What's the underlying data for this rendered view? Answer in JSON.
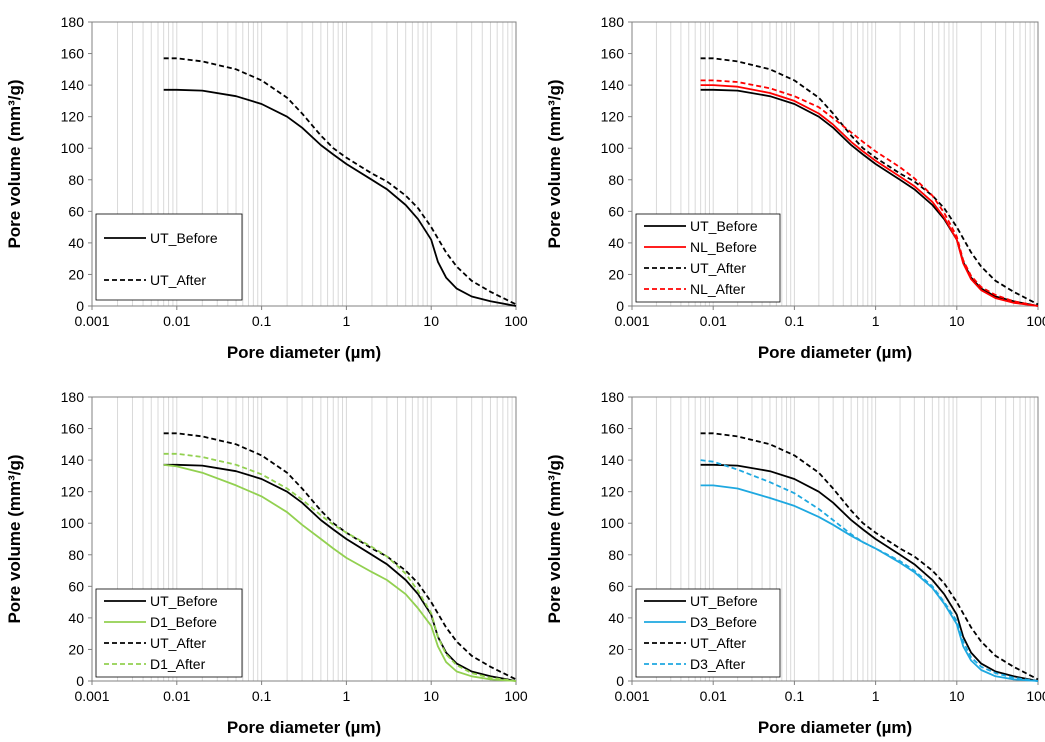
{
  "colors": {
    "ut_before": "#000000",
    "ut_after": "#000000",
    "nl": "#ff0000",
    "d1": "#92d050",
    "d3": "#1ea8e0",
    "grid": "#d9d9d9",
    "frame": "#808080"
  },
  "chart_data": [
    {
      "type": "line",
      "xlabel": "Pore diameter (µm)",
      "ylabel": "Pore volume (mm³/g)",
      "xscale": "log",
      "xlim": [
        0.001,
        100
      ],
      "ylim": [
        0,
        180
      ],
      "xticks": [
        "0.001",
        "0.01",
        "0.1",
        "1",
        "10",
        "100"
      ],
      "yticks": [
        "0",
        "20",
        "40",
        "60",
        "80",
        "100",
        "120",
        "140",
        "160",
        "180"
      ],
      "grid": "vertical minor",
      "legend_position": "bottom-left",
      "series": [
        {
          "name": "UT_Before",
          "color": "#000000",
          "dash": "solid",
          "x": [
            0.007,
            0.01,
            0.02,
            0.05,
            0.1,
            0.2,
            0.3,
            0.5,
            0.7,
            1,
            2,
            3,
            5,
            7,
            10,
            12,
            15,
            20,
            30,
            50,
            100
          ],
          "y": [
            137,
            137,
            136.5,
            133,
            128,
            120,
            113,
            102,
            96,
            90,
            80,
            74,
            64,
            55,
            42,
            28,
            18,
            11,
            6,
            3,
            0
          ]
        },
        {
          "name": "UT_After",
          "color": "#000000",
          "dash": "dashed",
          "x": [
            0.007,
            0.01,
            0.02,
            0.05,
            0.1,
            0.2,
            0.3,
            0.5,
            0.7,
            1,
            2,
            3,
            5,
            7,
            10,
            15,
            20,
            30,
            50,
            100
          ],
          "y": [
            157,
            157,
            155,
            150,
            143,
            132,
            122,
            108,
            100,
            94,
            84,
            79,
            70,
            62,
            50,
            34,
            25,
            16,
            9,
            1
          ]
        }
      ]
    },
    {
      "type": "line",
      "xlabel": "Pore diameter (µm)",
      "ylabel": "Pore volume (mm³/g)",
      "xscale": "log",
      "xlim": [
        0.001,
        100
      ],
      "ylim": [
        0,
        180
      ],
      "xticks": [
        "0.001",
        "0.01",
        "0.1",
        "1",
        "10",
        "100"
      ],
      "yticks": [
        "0",
        "20",
        "40",
        "60",
        "80",
        "100",
        "120",
        "140",
        "160",
        "180"
      ],
      "grid": "vertical minor",
      "legend_position": "bottom-left",
      "series": [
        {
          "name": "UT_Before",
          "color": "#000000",
          "dash": "solid",
          "x": [
            0.007,
            0.01,
            0.02,
            0.05,
            0.1,
            0.2,
            0.3,
            0.5,
            0.7,
            1,
            2,
            3,
            5,
            7,
            10,
            12,
            15,
            20,
            30,
            50,
            100
          ],
          "y": [
            137,
            137,
            136.5,
            133,
            128,
            120,
            113,
            102,
            96,
            90,
            80,
            74,
            64,
            55,
            42,
            28,
            18,
            11,
            6,
            3,
            0
          ]
        },
        {
          "name": "NL_Before",
          "color": "#ff0000",
          "dash": "solid",
          "x": [
            0.007,
            0.01,
            0.02,
            0.05,
            0.1,
            0.2,
            0.3,
            0.5,
            0.7,
            1,
            2,
            3,
            5,
            7,
            10,
            12,
            15,
            20,
            30,
            50,
            100
          ],
          "y": [
            140,
            140,
            139,
            135,
            130,
            122,
            115,
            104,
            98,
            92,
            82,
            76,
            66,
            56,
            42,
            27,
            17,
            10,
            5,
            2,
            0
          ]
        },
        {
          "name": "UT_After",
          "color": "#000000",
          "dash": "dashed",
          "x": [
            0.007,
            0.01,
            0.02,
            0.05,
            0.1,
            0.2,
            0.3,
            0.5,
            0.7,
            1,
            2,
            3,
            5,
            7,
            10,
            15,
            20,
            30,
            50,
            100
          ],
          "y": [
            157,
            157,
            155,
            150,
            143,
            132,
            122,
            108,
            100,
            94,
            84,
            79,
            70,
            62,
            50,
            34,
            25,
            16,
            9,
            1
          ]
        },
        {
          "name": "NL_After",
          "color": "#ff0000",
          "dash": "dashed",
          "x": [
            0.007,
            0.01,
            0.02,
            0.05,
            0.1,
            0.2,
            0.3,
            0.5,
            0.7,
            1,
            2,
            3,
            5,
            7,
            10,
            12,
            15,
            20,
            30,
            50,
            100
          ],
          "y": [
            143,
            143,
            142,
            138,
            133,
            126,
            119,
            110,
            104,
            98,
            88,
            81,
            70,
            59,
            44,
            29,
            19,
            12,
            7,
            3,
            0
          ]
        }
      ]
    },
    {
      "type": "line",
      "xlabel": "Pore diameter (µm)",
      "ylabel": "Pore volume (mm³/g)",
      "xscale": "log",
      "xlim": [
        0.001,
        100
      ],
      "ylim": [
        0,
        180
      ],
      "xticks": [
        "0.001",
        "0.01",
        "0.1",
        "1",
        "10",
        "100"
      ],
      "yticks": [
        "0",
        "20",
        "40",
        "60",
        "80",
        "100",
        "120",
        "140",
        "160",
        "180"
      ],
      "grid": "vertical minor",
      "legend_position": "bottom-left",
      "series": [
        {
          "name": "UT_Before",
          "color": "#000000",
          "dash": "solid",
          "x": [
            0.007,
            0.01,
            0.02,
            0.05,
            0.1,
            0.2,
            0.3,
            0.5,
            0.7,
            1,
            2,
            3,
            5,
            7,
            10,
            12,
            15,
            20,
            30,
            50,
            100
          ],
          "y": [
            137,
            137,
            136.5,
            133,
            128,
            120,
            113,
            102,
            96,
            90,
            80,
            74,
            64,
            55,
            42,
            28,
            18,
            11,
            6,
            3,
            0
          ]
        },
        {
          "name": "D1_Before",
          "color": "#92d050",
          "dash": "solid",
          "x": [
            0.007,
            0.01,
            0.02,
            0.05,
            0.1,
            0.2,
            0.3,
            0.5,
            0.7,
            1,
            2,
            3,
            5,
            7,
            10,
            12,
            15,
            20,
            30,
            50,
            100
          ],
          "y": [
            137,
            136,
            132,
            124,
            117,
            107,
            99,
            90,
            84,
            78,
            69,
            64,
            55,
            46,
            35,
            22,
            12,
            6,
            3,
            1,
            0
          ]
        },
        {
          "name": "UT_After",
          "color": "#000000",
          "dash": "dashed",
          "x": [
            0.007,
            0.01,
            0.02,
            0.05,
            0.1,
            0.2,
            0.3,
            0.5,
            0.7,
            1,
            2,
            3,
            5,
            7,
            10,
            15,
            20,
            30,
            50,
            100
          ],
          "y": [
            157,
            157,
            155,
            150,
            143,
            132,
            122,
            108,
            100,
            94,
            84,
            79,
            70,
            62,
            50,
            34,
            25,
            16,
            9,
            1
          ]
        },
        {
          "name": "D1_After",
          "color": "#92d050",
          "dash": "dashed",
          "x": [
            0.007,
            0.01,
            0.02,
            0.05,
            0.1,
            0.2,
            0.3,
            0.5,
            0.7,
            1,
            2,
            3,
            5,
            7,
            10,
            12,
            15,
            20,
            30,
            50,
            100
          ],
          "y": [
            144,
            144,
            142,
            137,
            131,
            122,
            115,
            105,
            99,
            94,
            85,
            79,
            68,
            57,
            43,
            28,
            17,
            10,
            5,
            2,
            0
          ]
        }
      ]
    },
    {
      "type": "line",
      "xlabel": "Pore diameter (µm)",
      "ylabel": "Pore volume (mm³/g)",
      "xscale": "log",
      "xlim": [
        0.001,
        100
      ],
      "ylim": [
        0,
        180
      ],
      "xticks": [
        "0.001",
        "0.01",
        "0.1",
        "1",
        "10",
        "100"
      ],
      "yticks": [
        "0",
        "20",
        "40",
        "60",
        "80",
        "100",
        "120",
        "140",
        "160",
        "180"
      ],
      "grid": "vertical minor",
      "legend_position": "bottom-left",
      "series": [
        {
          "name": "UT_Before",
          "color": "#000000",
          "dash": "solid",
          "x": [
            0.007,
            0.01,
            0.02,
            0.05,
            0.1,
            0.2,
            0.3,
            0.5,
            0.7,
            1,
            2,
            3,
            5,
            7,
            10,
            12,
            15,
            20,
            30,
            50,
            100
          ],
          "y": [
            137,
            137,
            136.5,
            133,
            128,
            120,
            113,
            102,
            96,
            90,
            80,
            74,
            64,
            55,
            42,
            28,
            18,
            11,
            6,
            3,
            0
          ]
        },
        {
          "name": "D3_Before",
          "color": "#1ea8e0",
          "dash": "solid",
          "x": [
            0.007,
            0.01,
            0.02,
            0.05,
            0.1,
            0.2,
            0.3,
            0.5,
            0.7,
            1,
            2,
            3,
            5,
            7,
            10,
            12,
            15,
            20,
            30,
            50,
            100
          ],
          "y": [
            124,
            124,
            122,
            116,
            111,
            104,
            99,
            92,
            88,
            84,
            75,
            69,
            59,
            49,
            36,
            22,
            13,
            7,
            3,
            1,
            0
          ]
        },
        {
          "name": "UT_After",
          "color": "#000000",
          "dash": "dashed",
          "x": [
            0.007,
            0.01,
            0.02,
            0.05,
            0.1,
            0.2,
            0.3,
            0.5,
            0.7,
            1,
            2,
            3,
            5,
            7,
            10,
            15,
            20,
            30,
            50,
            100
          ],
          "y": [
            157,
            157,
            155,
            150,
            143,
            132,
            122,
            108,
            100,
            94,
            84,
            79,
            70,
            62,
            50,
            34,
            25,
            16,
            9,
            1
          ]
        },
        {
          "name": "D3_After",
          "color": "#1ea8e0",
          "dash": "dashed",
          "x": [
            0.007,
            0.01,
            0.02,
            0.05,
            0.1,
            0.2,
            0.3,
            0.5,
            0.7,
            1,
            2,
            3,
            5,
            7,
            10,
            12,
            15,
            20,
            30,
            50,
            100
          ],
          "y": [
            140,
            139,
            134,
            126,
            119,
            109,
            102,
            93,
            88,
            84,
            76,
            70,
            60,
            50,
            38,
            25,
            15,
            9,
            5,
            2,
            0
          ]
        }
      ]
    }
  ]
}
